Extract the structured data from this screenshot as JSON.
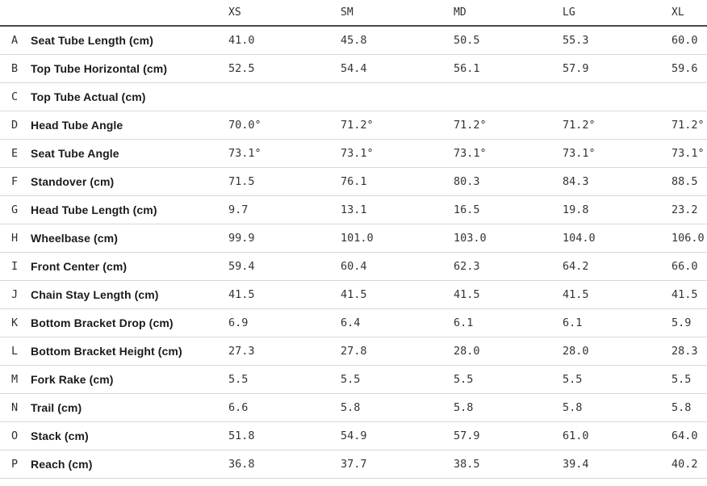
{
  "colors": {
    "header_rule": "#4a4a4a",
    "row_rule": "#d9d9d9",
    "label_text": "#1b1b1b",
    "value_text": "#333333"
  },
  "table": {
    "columns": [
      "XS",
      "SM",
      "MD",
      "LG",
      "XL"
    ],
    "rows": [
      {
        "letter": "A",
        "label": "Seat Tube Length (cm)",
        "values": [
          "41.0",
          "45.8",
          "50.5",
          "55.3",
          "60.0"
        ]
      },
      {
        "letter": "B",
        "label": "Top Tube Horizontal (cm)",
        "values": [
          "52.5",
          "54.4",
          "56.1",
          "57.9",
          "59.6"
        ]
      },
      {
        "letter": "C",
        "label": "Top Tube Actual (cm)",
        "values": [
          "",
          "",
          "",
          "",
          ""
        ]
      },
      {
        "letter": "D",
        "label": "Head Tube Angle",
        "values": [
          "70.0°",
          "71.2°",
          "71.2°",
          "71.2°",
          "71.2°"
        ]
      },
      {
        "letter": "E",
        "label": "Seat Tube Angle",
        "values": [
          "73.1°",
          "73.1°",
          "73.1°",
          "73.1°",
          "73.1°"
        ]
      },
      {
        "letter": "F",
        "label": "Standover (cm)",
        "values": [
          "71.5",
          "76.1",
          "80.3",
          "84.3",
          "88.5"
        ]
      },
      {
        "letter": "G",
        "label": "Head Tube Length (cm)",
        "values": [
          "9.7",
          "13.1",
          "16.5",
          "19.8",
          "23.2"
        ]
      },
      {
        "letter": "H",
        "label": "Wheelbase (cm)",
        "values": [
          "99.9",
          "101.0",
          "103.0",
          "104.0",
          "106.0"
        ]
      },
      {
        "letter": "I",
        "label": "Front Center (cm)",
        "values": [
          "59.4",
          "60.4",
          "62.3",
          "64.2",
          "66.0"
        ]
      },
      {
        "letter": "J",
        "label": "Chain Stay Length (cm)",
        "values": [
          "41.5",
          "41.5",
          "41.5",
          "41.5",
          "41.5"
        ]
      },
      {
        "letter": "K",
        "label": "Bottom Bracket Drop (cm)",
        "values": [
          "6.9",
          "6.4",
          "6.1",
          "6.1",
          "5.9"
        ]
      },
      {
        "letter": "L",
        "label": "Bottom Bracket Height (cm)",
        "values": [
          "27.3",
          "27.8",
          "28.0",
          "28.0",
          "28.3"
        ]
      },
      {
        "letter": "M",
        "label": "Fork Rake (cm)",
        "values": [
          "5.5",
          "5.5",
          "5.5",
          "5.5",
          "5.5"
        ]
      },
      {
        "letter": "N",
        "label": "Trail (cm)",
        "values": [
          "6.6",
          "5.8",
          "5.8",
          "5.8",
          "5.8"
        ]
      },
      {
        "letter": "O",
        "label": "Stack (cm)",
        "values": [
          "51.8",
          "54.9",
          "57.9",
          "61.0",
          "64.0"
        ]
      },
      {
        "letter": "P",
        "label": "Reach (cm)",
        "values": [
          "36.8",
          "37.7",
          "38.5",
          "39.4",
          "40.2"
        ]
      }
    ]
  }
}
